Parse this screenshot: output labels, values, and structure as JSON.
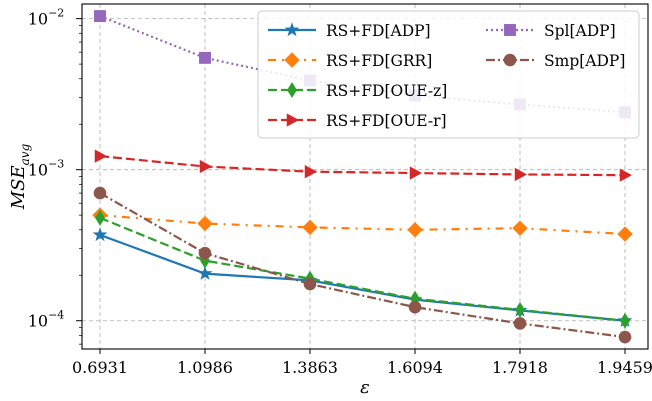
{
  "chart_data": {
    "type": "line",
    "title": "",
    "xlabel": "ε",
    "ylabel": "MSE_avg",
    "yscale": "log",
    "ylim": [
      6.5e-05,
      0.0125
    ],
    "grid": true,
    "legend_position": "top-right",
    "legend_columns": 2,
    "categories": [
      "0.6931",
      "1.0986",
      "1.3863",
      "1.6094",
      "1.7918",
      "1.9459"
    ],
    "ytick_labels": [
      {
        "value": 0.01,
        "base": "10",
        "exp": "−2"
      },
      {
        "value": 0.001,
        "base": "10",
        "exp": "−3"
      },
      {
        "value": 0.0001,
        "base": "10",
        "exp": "−4"
      }
    ],
    "series": [
      {
        "name": "RS+FD[ADP]",
        "color": "#1f77b4",
        "marker": "star",
        "linestyle": "solid",
        "values": [
          0.00037,
          0.000205,
          0.000185,
          0.000138,
          0.000117,
          0.0001
        ]
      },
      {
        "name": "RS+FD[GRR]",
        "color": "#ff7f0e",
        "marker": "diamond",
        "linestyle": "dashdot-loose",
        "values": [
          0.0005,
          0.00044,
          0.000415,
          0.0004,
          0.00041,
          0.000375
        ]
      },
      {
        "name": "RS+FD[OUE-z]",
        "color": "#2ca02c",
        "marker": "thin-diamond",
        "linestyle": "dashed",
        "values": [
          0.00048,
          0.00025,
          0.00019,
          0.00014,
          0.000118,
          0.0001
        ]
      },
      {
        "name": "RS+FD[OUE-r]",
        "color": "#d62728",
        "marker": "triangle-right",
        "linestyle": "dashed",
        "values": [
          0.00123,
          0.00105,
          0.00097,
          0.00095,
          0.00093,
          0.00092
        ]
      },
      {
        "name": "Spl[ADP]",
        "color": "#9467bd",
        "marker": "square",
        "linestyle": "dotted",
        "values": [
          0.0104,
          0.0055,
          0.0039,
          0.0031,
          0.0027,
          0.0024
        ]
      },
      {
        "name": "Smp[ADP]",
        "color": "#8c564b",
        "marker": "circle",
        "linestyle": "dashdot",
        "values": [
          0.0007,
          0.00028,
          0.000175,
          0.000123,
          9.6e-05,
          7.8e-05
        ]
      }
    ]
  }
}
